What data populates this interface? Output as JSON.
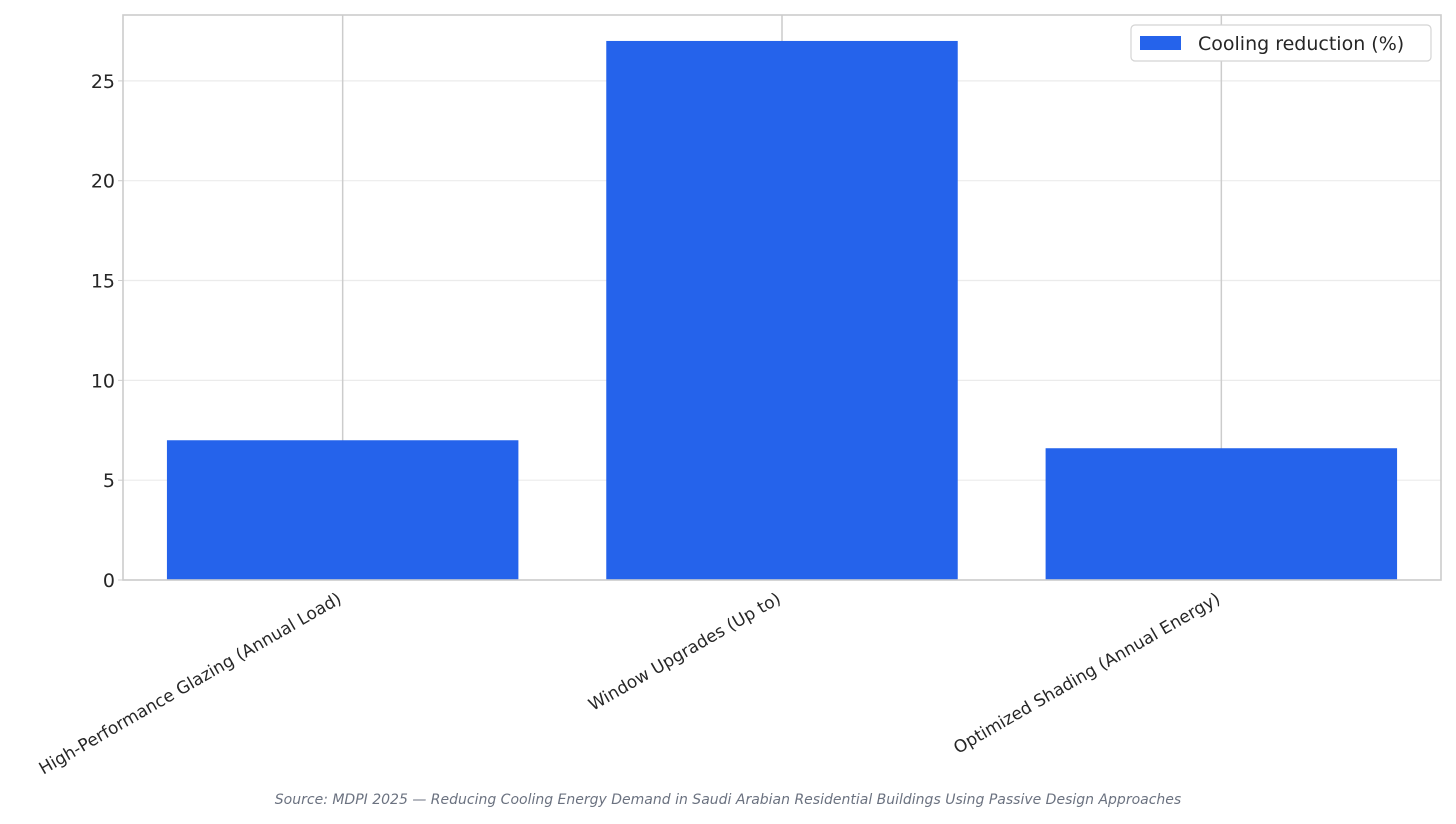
{
  "chart_data": {
    "type": "bar",
    "categories": [
      "High-Performance Glazing (Annual Load)",
      "Window Upgrades (Up to)",
      "Optimized Shading (Annual Energy)"
    ],
    "series": [
      {
        "name": "Cooling reduction (%)",
        "values": [
          7.0,
          27.0,
          6.6
        ]
      }
    ],
    "ylim": [
      0,
      28.3
    ],
    "yticks": [
      0,
      5,
      10,
      15,
      20,
      25
    ],
    "xlabel": "",
    "ylabel": "",
    "grid": true,
    "legend": "top-right",
    "colors": {
      "bar": "#2563eb",
      "grid": "#ebebeb",
      "vgrid": "#cccccc",
      "spine": "#cccccc"
    }
  },
  "source": "Source: MDPI 2025 — Reducing Cooling Energy Demand in Saudi Arabian Residential Buildings Using Passive Design Approaches"
}
